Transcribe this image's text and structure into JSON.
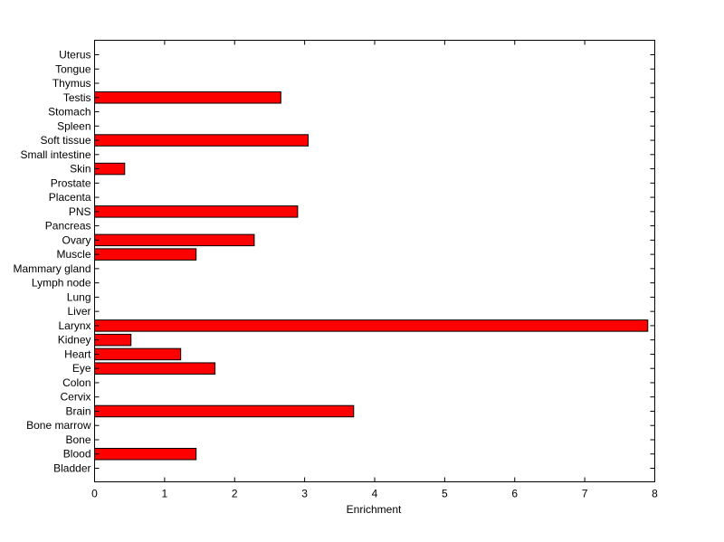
{
  "chart_data": {
    "type": "bar",
    "orientation": "horizontal",
    "title": "",
    "xlabel": "Enrichment",
    "ylabel": "",
    "xlim": [
      0,
      8
    ],
    "xticks": [
      "0",
      "1",
      "2",
      "3",
      "4",
      "5",
      "6",
      "7",
      "8"
    ],
    "grid": false,
    "legend": "none",
    "bar_color": "#ff0000",
    "categories": [
      "Bladder",
      "Blood",
      "Bone",
      "Bone marrow",
      "Brain",
      "Cervix",
      "Colon",
      "Eye",
      "Heart",
      "Kidney",
      "Larynx",
      "Liver",
      "Lung",
      "Lymph node",
      "Mammary gland",
      "Muscle",
      "Ovary",
      "Pancreas",
      "PNS",
      "Placenta",
      "Prostate",
      "Skin",
      "Small intestine",
      "Soft tissue",
      "Spleen",
      "Stomach",
      "Testis",
      "Thymus",
      "Tongue",
      "Uterus"
    ],
    "values": [
      0,
      1.45,
      0,
      0,
      3.7,
      0,
      0,
      1.72,
      1.23,
      0.52,
      7.9,
      0,
      0,
      0,
      0,
      1.45,
      2.28,
      0,
      2.9,
      0,
      0,
      0.43,
      0,
      3.05,
      0,
      0,
      2.66,
      0,
      0,
      0
    ]
  }
}
